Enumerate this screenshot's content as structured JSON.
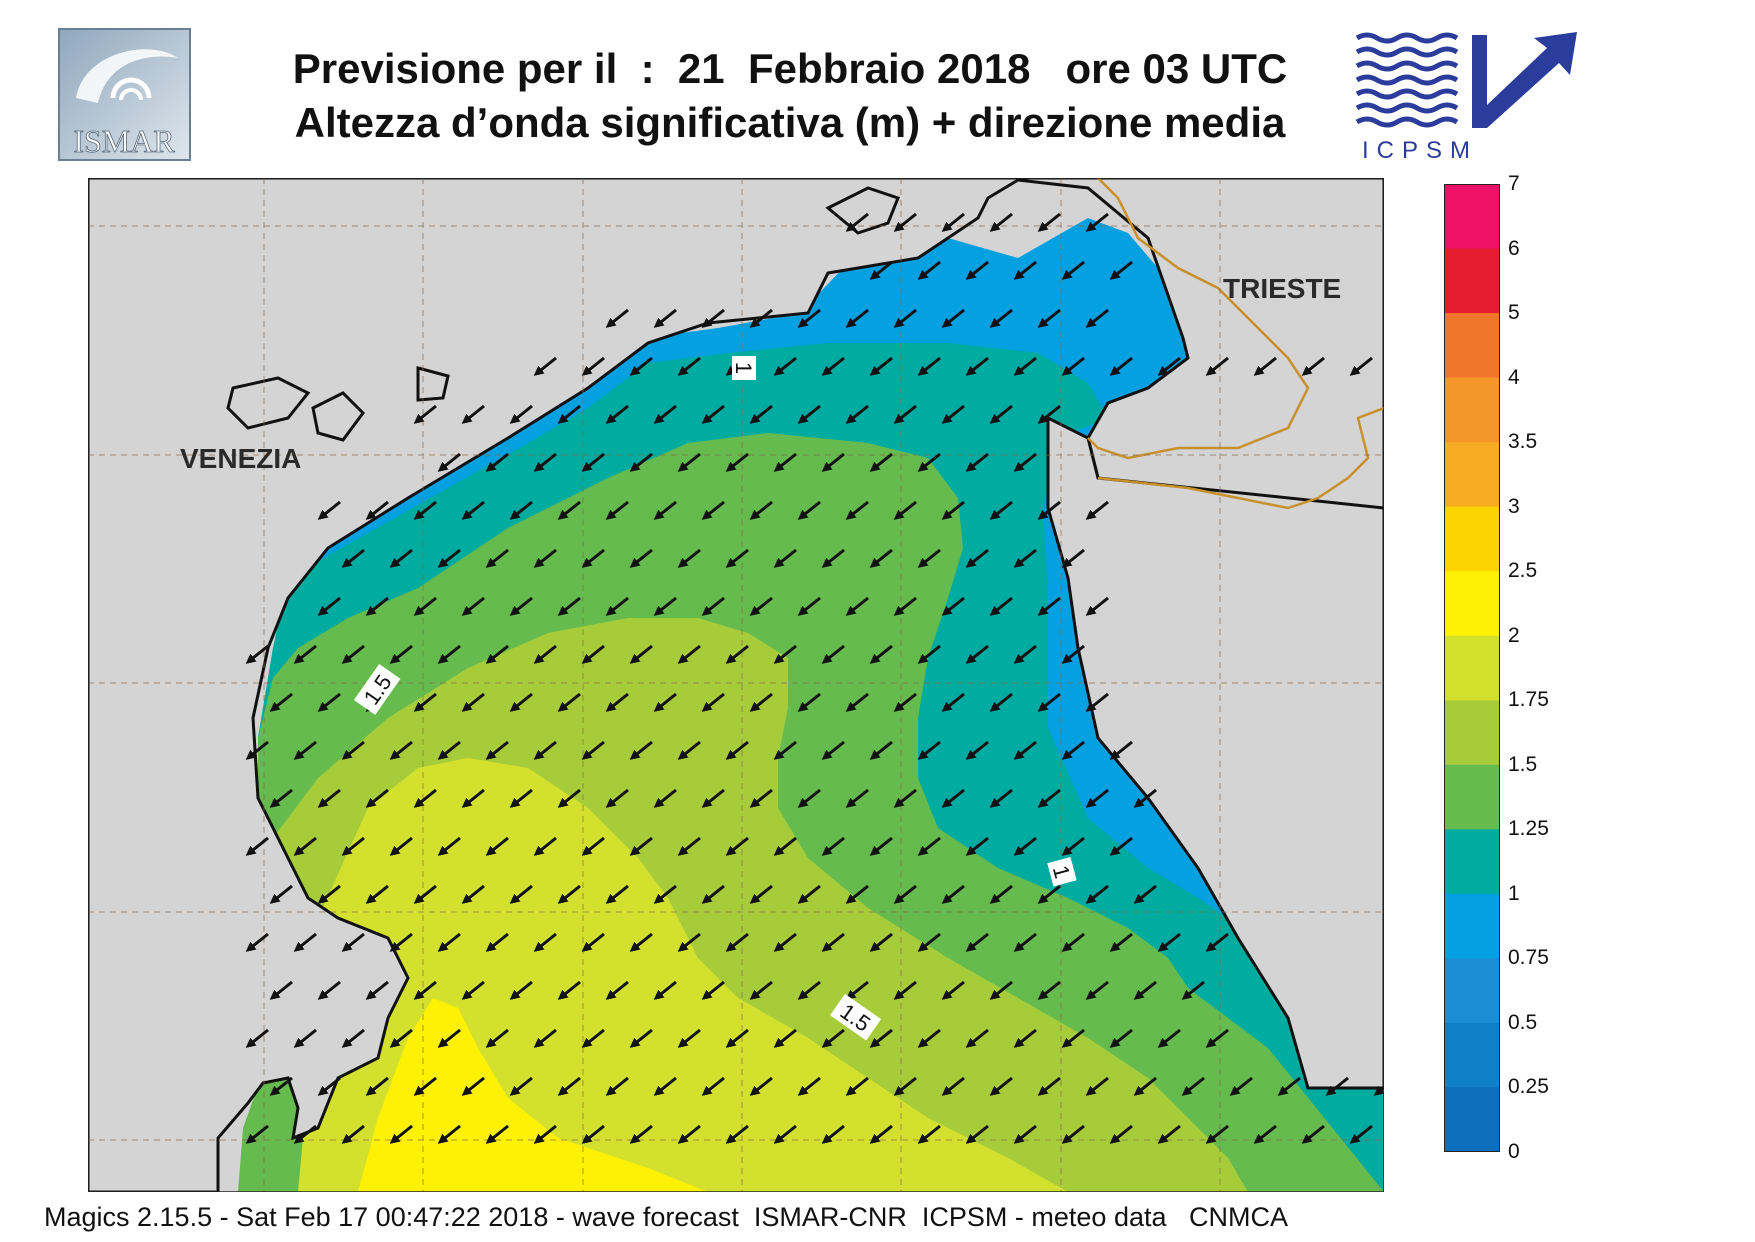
{
  "header": {
    "title_line1": "Previsione per il  :  21  Febbraio 2018   ore 03 UTC",
    "title_line2": "Altezza d’onda significativa (m) + direzione media"
  },
  "logos": {
    "left": {
      "text": "ISMAR",
      "icon": "ismar-logo-icon"
    },
    "right": {
      "text": "ICPSM",
      "icon": "icpsm-logo-icon"
    }
  },
  "map": {
    "places": [
      {
        "name": "VENEZIA"
      },
      {
        "name": "TRIESTE"
      }
    ],
    "contour_labels": [
      "1",
      "1.5",
      "1",
      "1.5"
    ],
    "arrow_direction": "south-west",
    "colors": {
      "land": "#d4d4d4",
      "border": "#c8902a"
    }
  },
  "legend": {
    "labels": [
      "7",
      "6",
      "5",
      "4",
      "3.5",
      "3",
      "2.5",
      "2",
      "1.75",
      "1.5",
      "1.25",
      "1",
      "0.75",
      "0.5",
      "0.25",
      "0"
    ],
    "colors": [
      "#ee1166",
      "#e41c2e",
      "#f0772a",
      "#f4962a",
      "#f6ad22",
      "#fdd402",
      "#fef104",
      "#d4e02e",
      "#a7cc3a",
      "#66bb4e",
      "#00ab9f",
      "#04a0e0",
      "#1a8fd6",
      "#0f7fc8",
      "#0c6fbb"
    ]
  },
  "footer": {
    "text": "Magics 2.15.5 - Sat Feb 17 00:47:22 2018 - wave forecast  ISMAR-CNR  ICPSM - meteo data   CNMCA"
  }
}
